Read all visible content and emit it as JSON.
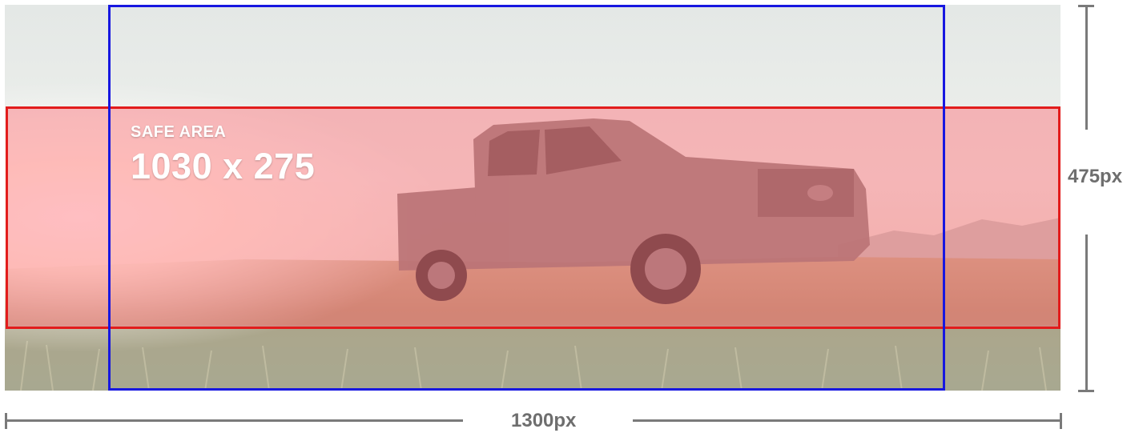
{
  "safe_area": {
    "title": "SAFE AREA",
    "dimensions": "1030 x 275",
    "border_color": "#e21c1c",
    "fill_color": "rgba(255,100,110,0.42)"
  },
  "mobile_area": {
    "border_color": "#1717e0"
  },
  "dimensions": {
    "width_label": "1300px",
    "height_label": "475px",
    "line_color": "#7a7a7a"
  },
  "background": {
    "subject": "pickup-truck-in-field-at-sunset",
    "palette": [
      "#e7ebe9",
      "#f3f0e4",
      "#b6a588",
      "#8d8a6c",
      "#cfd3ce"
    ]
  }
}
